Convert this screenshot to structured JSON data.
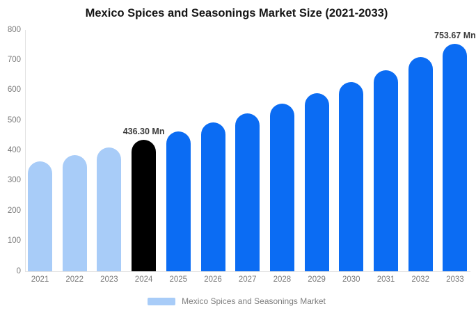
{
  "title": "Mexico Spices and Seasonings Market Size (2021-2033)",
  "legend": {
    "label": "Mexico Spices and Seasonings Market"
  },
  "colors": {
    "past": "#a8ccf8",
    "highlight": "#000000",
    "forecast": "#0b6cf3",
    "axis_line": "#e2e2e2",
    "tick_text": "#7a7a7a",
    "annotation_text": "#3b3b3b",
    "title_text": "#151515",
    "legend_text": "#7e7e7e"
  },
  "chart_data": {
    "type": "bar",
    "title": "Mexico Spices and Seasonings Market Size (2021-2033)",
    "categories": [
      "2021",
      "2022",
      "2023",
      "2024",
      "2025",
      "2026",
      "2027",
      "2028",
      "2029",
      "2030",
      "2031",
      "2032",
      "2033"
    ],
    "series": [
      {
        "name": "Mexico Spices and Seasonings Market",
        "values": [
          364,
          386,
          411,
          436.3,
          464,
          493,
          523,
          556,
          591,
          628,
          667,
          709,
          753.67
        ]
      }
    ],
    "point_styles": [
      "past",
      "past",
      "past",
      "highlight",
      "forecast",
      "forecast",
      "forecast",
      "forecast",
      "forecast",
      "forecast",
      "forecast",
      "forecast",
      "forecast"
    ],
    "annotations": [
      {
        "index": 3,
        "text": "436.30 Mn"
      },
      {
        "index": 12,
        "text": "753.67 Mn"
      }
    ],
    "xlabel": "",
    "ylabel": "",
    "ylim": [
      0,
      800
    ],
    "ytick_step": 100,
    "grid": false,
    "legend_position": "bottom",
    "legend_swatch_style": "past"
  }
}
